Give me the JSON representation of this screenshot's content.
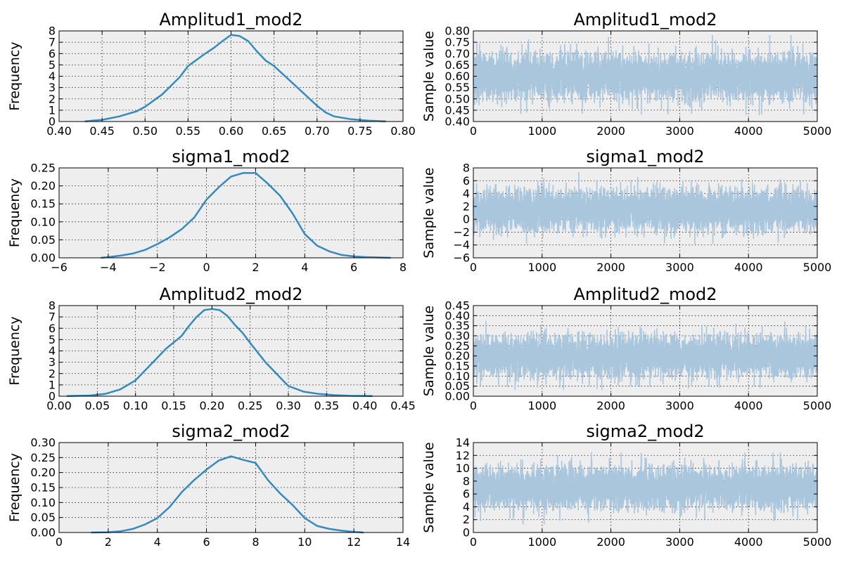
{
  "figure": {
    "background": "#ffffff",
    "plot_background": "#eeeeee",
    "kde_color": "#348abd",
    "trace_color": "#a9c6dd"
  },
  "chart_data": [
    {
      "type": "line",
      "kind": "density",
      "title": "Amplitud1_mod2",
      "xlabel": "",
      "ylabel": "Frequency",
      "xlim": [
        0.4,
        0.8
      ],
      "ylim": [
        0,
        8
      ],
      "xticks": [
        "0.40",
        "0.45",
        "0.50",
        "0.55",
        "0.60",
        "0.65",
        "0.70",
        "0.75",
        "0.80"
      ],
      "yticks": [
        "0",
        "1",
        "2",
        "3",
        "4",
        "5",
        "6",
        "7",
        "8"
      ],
      "grid": true,
      "x": [
        0.43,
        0.45,
        0.47,
        0.49,
        0.5,
        0.52,
        0.54,
        0.55,
        0.57,
        0.58,
        0.59,
        0.6,
        0.61,
        0.62,
        0.63,
        0.64,
        0.65,
        0.66,
        0.68,
        0.7,
        0.71,
        0.72,
        0.74,
        0.76,
        0.78
      ],
      "y": [
        0.02,
        0.15,
        0.45,
        0.9,
        1.3,
        2.4,
        3.9,
        4.9,
        6.0,
        6.5,
        7.1,
        7.65,
        7.55,
        7.1,
        6.2,
        5.4,
        4.9,
        4.2,
        2.8,
        1.4,
        0.8,
        0.45,
        0.2,
        0.08,
        0.01
      ]
    },
    {
      "type": "line",
      "kind": "trace",
      "title": "Amplitud1_mod2",
      "xlabel": "",
      "ylabel": "Sample value",
      "xlim": [
        0,
        5000
      ],
      "ylim": [
        0.4,
        0.8
      ],
      "xticks": [
        "0",
        "1000",
        "2000",
        "3000",
        "4000",
        "5000"
      ],
      "yticks": [
        "0.40",
        "0.45",
        "0.50",
        "0.55",
        "0.60",
        "0.65",
        "0.70",
        "0.75",
        "0.80"
      ],
      "grid": true,
      "n_samples": 5000,
      "mean": 0.6,
      "sd": 0.05,
      "min": 0.43,
      "max": 0.78
    },
    {
      "type": "line",
      "kind": "density",
      "title": "sigma1_mod2",
      "xlabel": "",
      "ylabel": "Frequency",
      "xlim": [
        -6,
        8
      ],
      "ylim": [
        0,
        0.25
      ],
      "xticks": [
        "−6",
        "−4",
        "−2",
        "0",
        "2",
        "4",
        "6",
        "8"
      ],
      "yticks": [
        "0.00",
        "0.05",
        "0.10",
        "0.15",
        "0.20",
        "0.25"
      ],
      "grid": true,
      "x": [
        -4.3,
        -4.0,
        -3.5,
        -3.0,
        -2.5,
        -2.0,
        -1.5,
        -1.0,
        -0.5,
        0.0,
        0.5,
        1.0,
        1.5,
        2.0,
        2.5,
        3.0,
        3.5,
        4.0,
        4.5,
        5.0,
        5.5,
        6.0,
        6.5,
        7.0,
        7.5
      ],
      "y": [
        0.0,
        0.002,
        0.006,
        0.012,
        0.022,
        0.038,
        0.057,
        0.08,
        0.112,
        0.162,
        0.196,
        0.226,
        0.236,
        0.236,
        0.206,
        0.172,
        0.124,
        0.066,
        0.034,
        0.018,
        0.008,
        0.004,
        0.002,
        0.001,
        0.0
      ]
    },
    {
      "type": "line",
      "kind": "trace",
      "title": "sigma1_mod2",
      "xlabel": "",
      "ylabel": "Sample value",
      "xlim": [
        0,
        5000
      ],
      "ylim": [
        -6,
        8
      ],
      "xticks": [
        "0",
        "1000",
        "2000",
        "3000",
        "4000",
        "5000"
      ],
      "yticks": [
        "−6",
        "−4",
        "−2",
        "0",
        "2",
        "4",
        "6",
        "8"
      ],
      "grid": true,
      "n_samples": 5000,
      "mean": 1.5,
      "sd": 1.6,
      "min": -4.2,
      "max": 7.3
    },
    {
      "type": "line",
      "kind": "density",
      "title": "Amplitud2_mod2",
      "xlabel": "",
      "ylabel": "Frequency",
      "xlim": [
        0.0,
        0.45
      ],
      "ylim": [
        0,
        8
      ],
      "xticks": [
        "0.00",
        "0.05",
        "0.10",
        "0.15",
        "0.20",
        "0.25",
        "0.30",
        "0.35",
        "0.40",
        "0.45"
      ],
      "yticks": [
        "0",
        "1",
        "2",
        "3",
        "4",
        "5",
        "6",
        "7",
        "8"
      ],
      "grid": true,
      "x": [
        0.01,
        0.04,
        0.06,
        0.08,
        0.1,
        0.12,
        0.14,
        0.16,
        0.17,
        0.18,
        0.19,
        0.2,
        0.21,
        0.22,
        0.23,
        0.24,
        0.25,
        0.27,
        0.29,
        0.3,
        0.32,
        0.34,
        0.36,
        0.38,
        0.41
      ],
      "y": [
        0.01,
        0.06,
        0.2,
        0.6,
        1.4,
        2.8,
        4.2,
        5.3,
        6.2,
        7.0,
        7.6,
        7.7,
        7.6,
        7.1,
        6.3,
        5.6,
        4.7,
        3.0,
        1.6,
        0.9,
        0.4,
        0.2,
        0.09,
        0.04,
        0.01
      ]
    },
    {
      "type": "line",
      "kind": "trace",
      "title": "Amplitud2_mod2",
      "xlabel": "",
      "ylabel": "Sample value",
      "xlim": [
        0,
        5000
      ],
      "ylim": [
        0.0,
        0.45
      ],
      "xticks": [
        "0",
        "1000",
        "2000",
        "3000",
        "4000",
        "5000"
      ],
      "yticks": [
        "0.00",
        "0.05",
        "0.10",
        "0.15",
        "0.20",
        "0.25",
        "0.30",
        "0.35",
        "0.40",
        "0.45"
      ],
      "grid": true,
      "n_samples": 5000,
      "mean": 0.2,
      "sd": 0.05,
      "min": 0.01,
      "max": 0.41
    },
    {
      "type": "line",
      "kind": "density",
      "title": "sigma2_mod2",
      "xlabel": "",
      "ylabel": "Frequency",
      "xlim": [
        0,
        14
      ],
      "ylim": [
        0,
        0.3
      ],
      "xticks": [
        "0",
        "2",
        "4",
        "6",
        "8",
        "10",
        "12",
        "14"
      ],
      "yticks": [
        "0.00",
        "0.05",
        "0.10",
        "0.15",
        "0.20",
        "0.25",
        "0.30"
      ],
      "grid": true,
      "x": [
        1.3,
        2.0,
        2.5,
        3.0,
        3.5,
        4.0,
        4.5,
        5.0,
        5.5,
        6.0,
        6.5,
        7.0,
        7.5,
        8.0,
        8.5,
        9.0,
        9.5,
        10.0,
        10.5,
        11.0,
        11.5,
        12.0,
        12.4
      ],
      "y": [
        0.0,
        0.001,
        0.004,
        0.012,
        0.027,
        0.048,
        0.085,
        0.135,
        0.175,
        0.21,
        0.24,
        0.254,
        0.242,
        0.232,
        0.175,
        0.13,
        0.092,
        0.048,
        0.022,
        0.012,
        0.006,
        0.002,
        0.0
      ]
    },
    {
      "type": "line",
      "kind": "trace",
      "title": "sigma2_mod2",
      "xlabel": "",
      "ylabel": "Sample value",
      "xlim": [
        0,
        5000
      ],
      "ylim": [
        0,
        14
      ],
      "xticks": [
        "0",
        "1000",
        "2000",
        "3000",
        "4000",
        "5000"
      ],
      "yticks": [
        "0",
        "2",
        "4",
        "6",
        "8",
        "10",
        "12",
        "14"
      ],
      "grid": true,
      "n_samples": 5000,
      "mean": 7.0,
      "sd": 1.6,
      "min": 1.3,
      "max": 12.4
    }
  ]
}
